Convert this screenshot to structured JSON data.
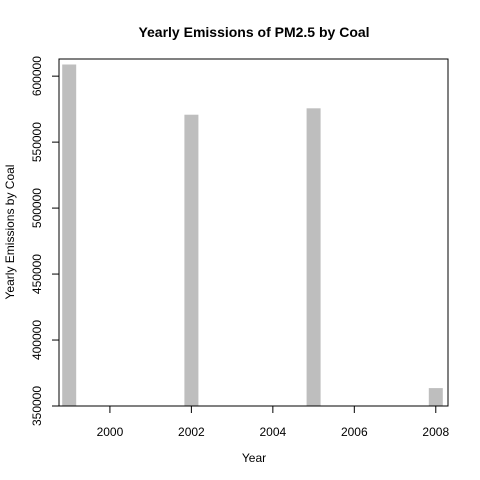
{
  "chart_data": {
    "type": "bar",
    "title": "Yearly Emissions of PM2.5 by Coal",
    "xlabel": "Year",
    "ylabel": "Yearly Emissions by Coal",
    "x": [
      1999,
      2002,
      2005,
      2008
    ],
    "values": [
      608800,
      570800,
      575600,
      363600
    ],
    "xlim": [
      1998.75,
      2008.3
    ],
    "ylim": [
      350000,
      613000
    ],
    "xticks": [
      2000,
      2002,
      2004,
      2006,
      2008
    ],
    "yticks": [
      350000,
      400000,
      450000,
      500000,
      550000,
      600000
    ],
    "bar_color": "#bebebe",
    "grid": false,
    "legend": "none"
  }
}
